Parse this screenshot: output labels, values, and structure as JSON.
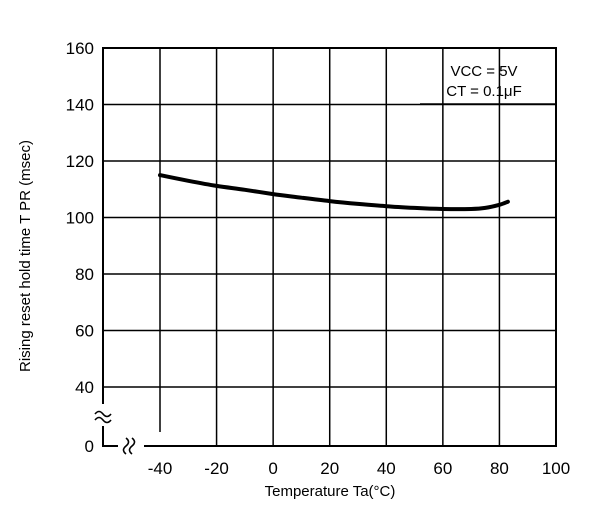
{
  "chart_data": {
    "type": "line",
    "title": "",
    "xlabel": "Temperature Ta(°C)",
    "ylabel": "Rising reset hold time T PR (msec)",
    "x_ticks": [
      "-40",
      "-20",
      "0",
      "20",
      "40",
      "60",
      "80",
      "100"
    ],
    "y_ticks": [
      "0",
      "40",
      "60",
      "80",
      "100",
      "120",
      "140",
      "160"
    ],
    "xlim": [
      -60,
      100
    ],
    "ylim": [
      20,
      160
    ],
    "axis_breaks": true,
    "grid": true,
    "annotation_lines": [
      "VCC = 5V",
      "CT = 0.1μF"
    ],
    "series": [
      {
        "x": [
          -40,
          -30,
          -20,
          -10,
          0,
          10,
          20,
          30,
          40,
          50,
          60,
          70,
          75,
          80,
          83
        ],
        "y": [
          115,
          113,
          111.2,
          109.8,
          108.3,
          107,
          105.8,
          104.8,
          104,
          103.4,
          103,
          103,
          103.4,
          104.5,
          105.6
        ]
      }
    ]
  }
}
